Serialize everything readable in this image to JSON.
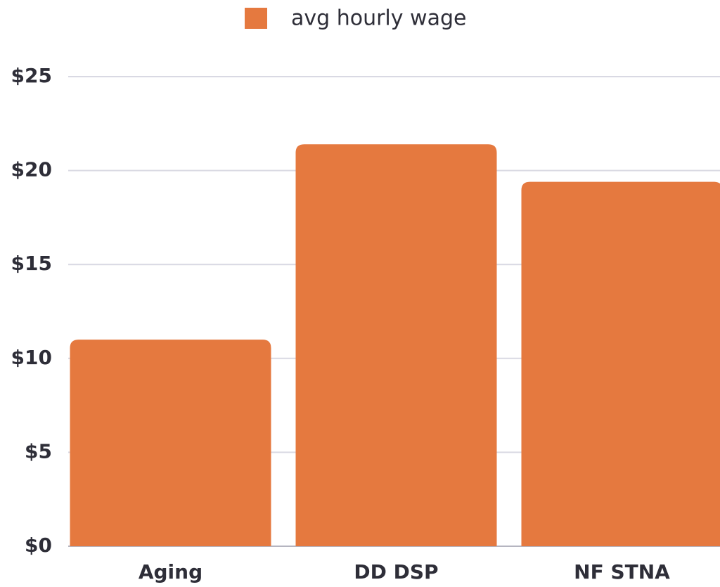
{
  "chart_data": {
    "type": "bar",
    "categories": [
      "Aging",
      "DD DSP",
      "NF STNA"
    ],
    "series": [
      {
        "name": "avg hourly wage",
        "color": "#e5793f",
        "values": [
          11.0,
          21.4,
          19.4
        ]
      }
    ],
    "ylim": [
      0,
      25
    ],
    "yticks": [
      {
        "value": 0,
        "label": "$0"
      },
      {
        "value": 5,
        "label": "$5"
      },
      {
        "value": 10,
        "label": "$10"
      },
      {
        "value": 15,
        "label": "$15"
      },
      {
        "value": 20,
        "label": "$20"
      },
      {
        "value": 25,
        "label": "$25"
      }
    ],
    "grid": true,
    "legend": "top"
  }
}
